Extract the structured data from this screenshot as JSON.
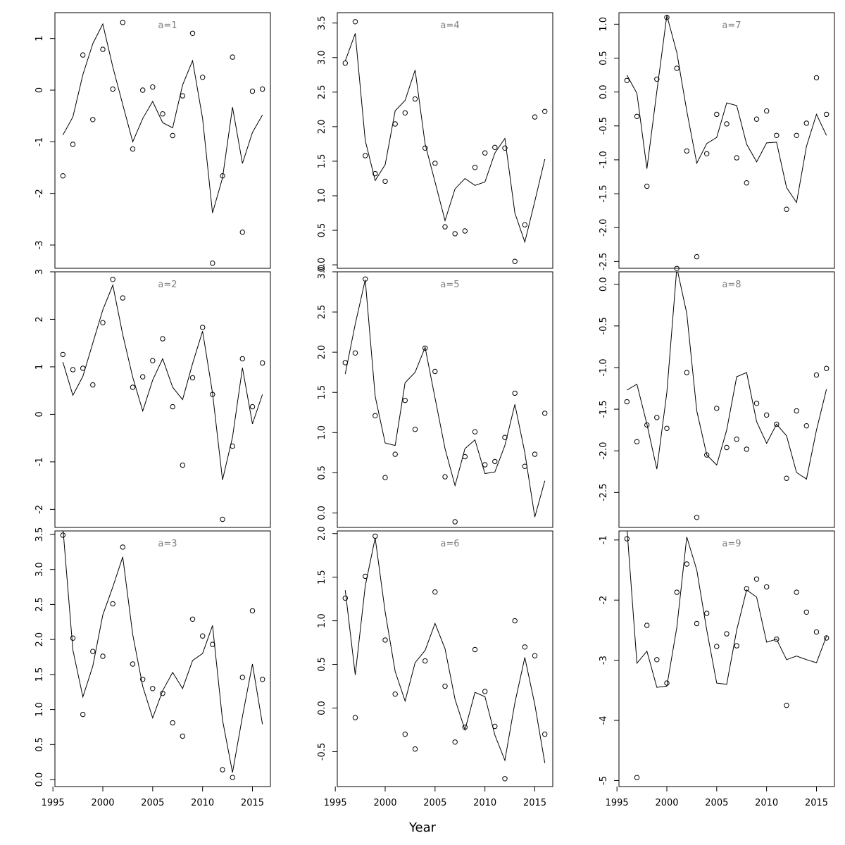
{
  "chart_data": {
    "type": "line",
    "xlabel": "Year",
    "x": [
      1996,
      1997,
      1998,
      1999,
      2000,
      2001,
      2002,
      2003,
      2004,
      2005,
      2006,
      2007,
      2008,
      2009,
      2010,
      2011,
      2012,
      2013,
      2014,
      2015,
      2016
    ],
    "xticks": [
      1995,
      2000,
      2005,
      2010,
      2015
    ],
    "xlim": [
      1995.2,
      2016.8
    ],
    "panels": [
      {
        "label": "a=1",
        "ylim": [
          -3.45,
          1.5
        ],
        "yticks": [
          1,
          0,
          -1,
          -2,
          -3
        ],
        "line": [
          -0.87,
          -0.52,
          0.3,
          0.9,
          1.28,
          0.45,
          -0.28,
          -1.0,
          -0.55,
          -0.22,
          -0.63,
          -0.73,
          0.1,
          0.57,
          -0.55,
          -2.38,
          -1.7,
          -0.33,
          -1.42,
          -0.82,
          -0.48
        ],
        "points": [
          -1.66,
          -1.05,
          0.68,
          -0.57,
          0.79,
          0.02,
          1.31,
          -1.14,
          0.0,
          0.06,
          -0.46,
          -0.88,
          -0.11,
          1.1,
          0.25,
          -3.35,
          -1.66,
          0.64,
          -2.75,
          -0.02,
          0.02
        ]
      },
      {
        "label": "a=2",
        "ylim": [
          -2.38,
          3.0
        ],
        "yticks": [
          3,
          2,
          1,
          0,
          -1,
          -2
        ],
        "line": [
          1.1,
          0.4,
          0.8,
          1.5,
          2.2,
          2.72,
          1.68,
          0.78,
          0.07,
          0.72,
          1.17,
          0.57,
          0.31,
          1.07,
          1.75,
          0.45,
          -1.38,
          -0.48,
          0.98,
          -0.2,
          0.42
        ],
        "points": [
          1.26,
          0.94,
          0.97,
          0.62,
          1.93,
          2.84,
          2.45,
          0.57,
          0.79,
          1.13,
          1.59,
          0.16,
          -1.07,
          0.77,
          1.83,
          0.42,
          -2.21,
          -0.67,
          1.17,
          0.16,
          1.08
        ]
      },
      {
        "label": "a=3",
        "ylim": [
          -0.1,
          3.55
        ],
        "yticks": [
          3.5,
          3.0,
          2.5,
          2.0,
          1.5,
          1.0,
          0.5,
          0.0
        ],
        "line": [
          3.6,
          1.85,
          1.18,
          1.62,
          2.35,
          2.75,
          3.18,
          2.07,
          1.33,
          0.88,
          1.27,
          1.53,
          1.3,
          1.7,
          1.8,
          2.2,
          0.85,
          0.1,
          0.9,
          1.65,
          0.79
        ],
        "points": [
          3.49,
          2.02,
          0.93,
          1.83,
          1.76,
          2.51,
          3.32,
          1.65,
          1.43,
          1.3,
          1.23,
          0.81,
          0.62,
          2.29,
          2.05,
          1.93,
          0.14,
          0.03,
          1.46,
          2.41,
          1.43
        ]
      },
      {
        "label": "a=4",
        "ylim": [
          -0.05,
          3.65
        ],
        "yticks": [
          3.5,
          3.0,
          2.5,
          2.0,
          1.5,
          1.0,
          0.5,
          0.0
        ],
        "line": [
          2.95,
          3.35,
          1.8,
          1.22,
          1.45,
          2.23,
          2.38,
          2.82,
          1.75,
          1.2,
          0.64,
          1.1,
          1.25,
          1.15,
          1.2,
          1.62,
          1.83,
          0.75,
          0.33,
          0.92,
          1.53
        ],
        "points": [
          2.92,
          3.52,
          1.58,
          1.32,
          1.21,
          2.04,
          2.2,
          2.4,
          1.69,
          1.47,
          0.55,
          0.45,
          0.49,
          1.41,
          1.62,
          1.7,
          1.69,
          0.05,
          0.58,
          2.14,
          2.22
        ]
      },
      {
        "label": "a=5",
        "ylim": [
          -0.18,
          3.0
        ],
        "yticks": [
          3.0,
          2.5,
          2.0,
          1.5,
          1.0,
          0.5,
          0.0
        ],
        "line": [
          1.73,
          2.35,
          2.9,
          1.45,
          0.87,
          0.84,
          1.62,
          1.75,
          2.06,
          1.43,
          0.8,
          0.34,
          0.8,
          0.91,
          0.49,
          0.51,
          0.84,
          1.35,
          0.75,
          -0.05,
          0.4
        ],
        "points": [
          1.87,
          1.99,
          2.91,
          1.21,
          0.44,
          0.73,
          1.4,
          1.04,
          2.05,
          1.76,
          0.45,
          -0.11,
          0.7,
          1.01,
          0.6,
          0.64,
          0.94,
          1.49,
          0.58,
          0.73,
          1.24
        ]
      },
      {
        "label": "a=6",
        "ylim": [
          -0.9,
          2.03
        ],
        "yticks": [
          2.0,
          1.5,
          1.0,
          0.5,
          0.0,
          -0.5
        ],
        "line": [
          1.35,
          0.38,
          1.4,
          1.95,
          1.1,
          0.42,
          0.08,
          0.52,
          0.66,
          0.97,
          0.68,
          0.1,
          -0.25,
          0.18,
          0.13,
          -0.31,
          -0.6,
          0.06,
          0.58,
          0.04,
          -0.63
        ],
        "points": [
          1.26,
          -0.11,
          1.51,
          1.97,
          0.78,
          0.16,
          -0.3,
          -0.47,
          0.54,
          1.33,
          0.25,
          -0.39,
          -0.22,
          0.67,
          0.19,
          -0.21,
          -0.81,
          1.0,
          0.7,
          0.6,
          -0.3
        ]
      },
      {
        "label": "a=7",
        "ylim": [
          -2.6,
          1.17
        ],
        "yticks": [
          1.0,
          0.5,
          0.0,
          -0.5,
          -1.0,
          -1.5,
          -2.0,
          -2.5
        ],
        "line": [
          0.25,
          -0.02,
          -1.13,
          0.01,
          1.13,
          0.58,
          -0.28,
          -1.05,
          -0.76,
          -0.67,
          -0.16,
          -0.2,
          -0.77,
          -1.03,
          -0.75,
          -0.74,
          -1.41,
          -1.63,
          -0.8,
          -0.33,
          -0.64
        ],
        "points": [
          0.17,
          -0.36,
          -1.39,
          0.19,
          1.1,
          0.35,
          -0.87,
          -2.43,
          -0.91,
          -0.33,
          -0.47,
          -0.97,
          -1.34,
          -0.4,
          -0.28,
          -0.64,
          -1.73,
          -0.64,
          -0.46,
          0.21,
          -0.33
        ]
      },
      {
        "label": "a=8",
        "ylim": [
          -2.92,
          0.15
        ],
        "yticks": [
          0.0,
          -0.5,
          -1.0,
          -1.5,
          -2.0,
          -2.5
        ],
        "line": [
          -1.27,
          -1.2,
          -1.68,
          -2.22,
          -1.3,
          0.2,
          -0.35,
          -1.52,
          -2.05,
          -2.17,
          -1.75,
          -1.11,
          -1.06,
          -1.65,
          -1.91,
          -1.68,
          -1.82,
          -2.26,
          -2.34,
          -1.75,
          -1.26
        ],
        "points": [
          -1.41,
          -1.89,
          -1.69,
          -1.6,
          -1.73,
          0.19,
          -1.06,
          -2.8,
          -2.05,
          -1.49,
          -1.96,
          -1.86,
          -1.98,
          -1.43,
          -1.57,
          -1.68,
          -2.33,
          -1.52,
          -1.7,
          -1.09,
          -1.01
        ]
      },
      {
        "label": "a=9",
        "ylim": [
          -5.1,
          -0.85
        ],
        "yticks": [
          -1,
          -2,
          -3,
          -4,
          -5
        ],
        "line": [
          -0.8,
          -3.05,
          -2.85,
          -3.45,
          -3.43,
          -2.45,
          -0.95,
          -1.5,
          -2.5,
          -3.38,
          -3.4,
          -2.5,
          -1.83,
          -1.95,
          -2.7,
          -2.65,
          -2.99,
          -2.93,
          -2.99,
          -3.04,
          -2.6
        ],
        "points": [
          -0.98,
          -4.95,
          -2.42,
          -2.99,
          -3.38,
          -1.87,
          -1.4,
          -2.39,
          -2.22,
          -2.77,
          -2.56,
          -2.76,
          -1.81,
          -1.65,
          -1.78,
          -2.65,
          -3.75,
          -1.87,
          -2.2,
          -2.53,
          -2.63
        ]
      }
    ]
  }
}
